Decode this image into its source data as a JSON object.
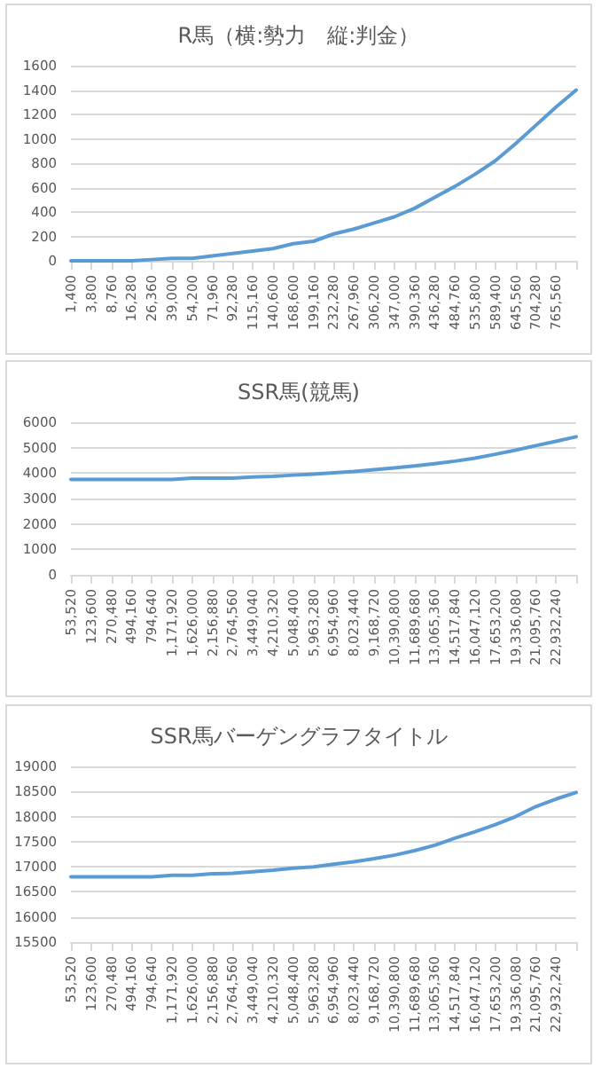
{
  "chart_data": [
    {
      "type": "line",
      "title": "R馬（横:勢力　縦:判金）",
      "categories": [
        "1,400",
        "3,800",
        "8,760",
        "16,280",
        "26,360",
        "39,000",
        "54,200",
        "71,960",
        "92,280",
        "115,160",
        "140,600",
        "168,600",
        "199,160",
        "232,280",
        "267,960",
        "306,200",
        "347,000",
        "390,360",
        "436,280",
        "484,760",
        "535,800",
        "589,400",
        "645,560",
        "704,280",
        "765,560",
        null
      ],
      "series": [
        {
          "color": "#5b9bd5",
          "values": [
            0,
            0,
            0,
            0,
            10,
            20,
            20,
            40,
            60,
            80,
            100,
            140,
            160,
            220,
            260,
            310,
            360,
            430,
            520,
            610,
            710,
            820,
            960,
            1110,
            1260,
            1400
          ]
        }
      ],
      "ylim": [
        0,
        1600
      ],
      "yticks": [
        0,
        200,
        400,
        600,
        800,
        1000,
        1200,
        1400,
        1600
      ],
      "grid": "y",
      "marker": "none"
    },
    {
      "type": "line",
      "title": "SSR馬(競馬)",
      "categories": [
        "53,520",
        "123,600",
        "270,480",
        "494,160",
        "794,640",
        "1,171,920",
        "1,626,000",
        "2,156,880",
        "2,764,560",
        "3,449,040",
        "4,210,320",
        "5,048,400",
        "5,963,280",
        "6,954,960",
        "8,023,440",
        "9,168,720",
        "10,390,800",
        "11,689,680",
        "13,065,360",
        "14,517,840",
        "16,047,120",
        "17,653,200",
        "19,336,080",
        "21,095,760",
        "22,932,240",
        null
      ],
      "series": [
        {
          "color": "#5b9bd5",
          "values": [
            3750,
            3750,
            3750,
            3750,
            3750,
            3750,
            3800,
            3800,
            3800,
            3850,
            3870,
            3920,
            3960,
            4010,
            4060,
            4130,
            4200,
            4280,
            4370,
            4470,
            4590,
            4740,
            4900,
            5080,
            5250,
            5430
          ]
        }
      ],
      "ylim": [
        0,
        6000
      ],
      "yticks": [
        0,
        1000,
        2000,
        3000,
        4000,
        5000,
        6000
      ],
      "grid": "y",
      "marker": "none"
    },
    {
      "type": "line",
      "title": "SSR馬バーゲングラフタイトル",
      "categories": [
        "53,520",
        "123,600",
        "270,480",
        "494,160",
        "794,640",
        "1,171,920",
        "1,626,000",
        "2,156,880",
        "2,764,560",
        "3,449,040",
        "4,210,320",
        "5,048,400",
        "5,963,280",
        "6,954,960",
        "8,023,440",
        "9,168,720",
        "10,390,800",
        "11,689,680",
        "13,065,360",
        "14,517,840",
        "16,047,120",
        "17,653,200",
        "19,336,080",
        "21,095,760",
        "22,932,240",
        null
      ],
      "series": [
        {
          "color": "#5b9bd5",
          "values": [
            16800,
            16800,
            16800,
            16800,
            16800,
            16830,
            16830,
            16860,
            16870,
            16900,
            16930,
            16970,
            17000,
            17050,
            17100,
            17160,
            17230,
            17320,
            17430,
            17570,
            17700,
            17840,
            18000,
            18200,
            18350,
            18480
          ]
        }
      ],
      "ylim": [
        15500,
        19000
      ],
      "yticks": [
        15500,
        16000,
        16500,
        17000,
        17500,
        18000,
        18500,
        19000
      ],
      "grid": "y",
      "marker": "none"
    }
  ]
}
